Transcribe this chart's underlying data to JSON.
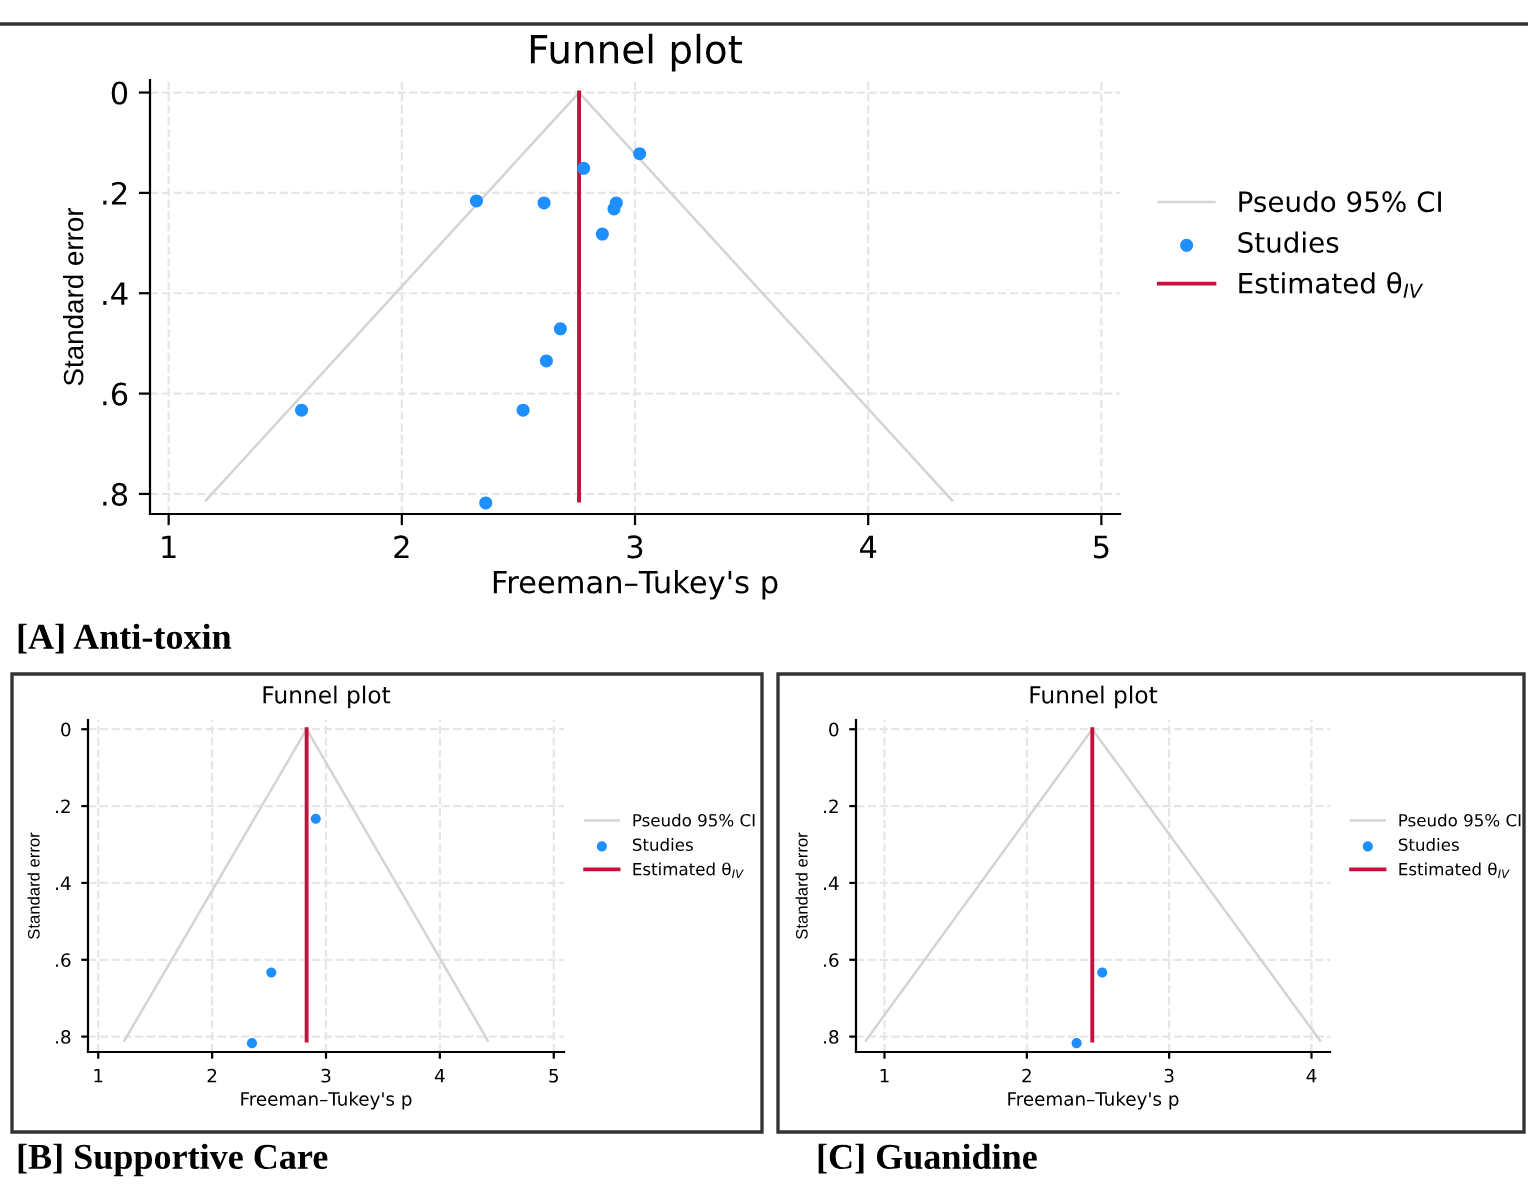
{
  "chart_data": [
    {
      "type": "scatter",
      "title": "Funnel plot",
      "xlabel": "Freeman–Tukey's p",
      "ylabel": "Standard error",
      "annotations": [
        "[A] Anti-toxin"
      ],
      "xlim": [
        0.92,
        5.08
      ],
      "ylim": [
        0.84,
        -0.025
      ],
      "xticks": [
        1,
        2,
        3,
        4,
        5
      ],
      "yticks": [
        0,
        {
          "value": 0.2,
          "label": ".2"
        },
        {
          "value": 0.4,
          "label": ".4"
        },
        {
          "value": 0.6,
          "label": ".6"
        },
        {
          "value": 0.8,
          "label": ".8"
        }
      ],
      "grid": true,
      "legend": "right",
      "series": [
        {
          "name": "Pseudo 95% CI",
          "type": "line",
          "color": "#d4d4d4",
          "x": [
            1.16,
            2.76,
            4.36
          ],
          "values": [
            0.813,
            0,
            0.813
          ]
        },
        {
          "name": "Studies",
          "marker": "circle",
          "color": "#1e8fff",
          "x": [
            3.02,
            2.78,
            2.32,
            2.61,
            2.92,
            2.91,
            2.86,
            2.68,
            2.62,
            1.57,
            2.52,
            2.36
          ],
          "values": [
            0.122,
            0.151,
            0.216,
            0.22,
            0.22,
            0.232,
            0.282,
            0.471,
            0.535,
            0.633,
            0.633,
            0.818
          ]
        },
        {
          "name": "Estimated θ$_{IV}$",
          "type": "line",
          "color": "#c8103c",
          "x": [
            2.76,
            2.76
          ],
          "values": [
            0,
            0.813
          ]
        }
      ]
    },
    {
      "type": "scatter",
      "title": "Funnel plot",
      "xlabel": "Freeman–Tukey's p",
      "ylabel": "Standard error",
      "annotations": [
        "[B] Supportive Care"
      ],
      "xlim": [
        0.91,
        5.09
      ],
      "ylim": [
        0.84,
        -0.024
      ],
      "xticks": [
        1,
        2,
        3,
        4,
        5
      ],
      "yticks": [
        0,
        {
          "value": 0.2,
          "label": ".2"
        },
        {
          "value": 0.4,
          "label": ".4"
        },
        {
          "value": 0.6,
          "label": ".6"
        },
        {
          "value": 0.8,
          "label": ".8"
        }
      ],
      "grid": true,
      "legend": "right",
      "series": [
        {
          "name": "Pseudo 95% CI",
          "type": "line",
          "color": "#d4d4d4",
          "x": [
            1.23,
            2.83,
            4.42
          ],
          "values": [
            0.81,
            0,
            0.81
          ]
        },
        {
          "name": "Studies",
          "marker": "circle",
          "color": "#1e8fff",
          "x": [
            2.91,
            2.52,
            2.35
          ],
          "values": [
            0.233,
            0.633,
            0.817
          ]
        },
        {
          "name": "Estimated θ$_{IV}$",
          "type": "line",
          "color": "#c8103c",
          "x": [
            2.83,
            2.83
          ],
          "values": [
            0,
            0.81
          ]
        }
      ]
    },
    {
      "type": "scatter",
      "title": "Funnel plot",
      "xlabel": "Freeman–Tukey's p",
      "ylabel": "Standard error",
      "annotations": [
        "[C] Guanidine"
      ],
      "xlim": [
        0.8,
        4.13
      ],
      "ylim": [
        0.84,
        -0.024
      ],
      "xticks": [
        1,
        2,
        3,
        4
      ],
      "yticks": [
        0,
        {
          "value": 0.2,
          "label": ".2"
        },
        {
          "value": 0.4,
          "label": ".4"
        },
        {
          "value": 0.6,
          "label": ".6"
        },
        {
          "value": 0.8,
          "label": ".8"
        }
      ],
      "grid": true,
      "legend": "right",
      "series": [
        {
          "name": "Pseudo 95% CI",
          "type": "line",
          "color": "#d4d4d4",
          "x": [
            0.87,
            2.46,
            4.06
          ],
          "values": [
            0.81,
            0,
            0.81
          ]
        },
        {
          "name": "Studies",
          "marker": "circle",
          "color": "#1e8fff",
          "x": [
            2.53,
            2.35
          ],
          "values": [
            0.633,
            0.817
          ]
        },
        {
          "name": "Estimated θ$_{IV}$",
          "type": "line",
          "color": "#c8103c",
          "x": [
            2.46,
            2.46
          ],
          "values": [
            0,
            0.81
          ]
        }
      ]
    }
  ]
}
